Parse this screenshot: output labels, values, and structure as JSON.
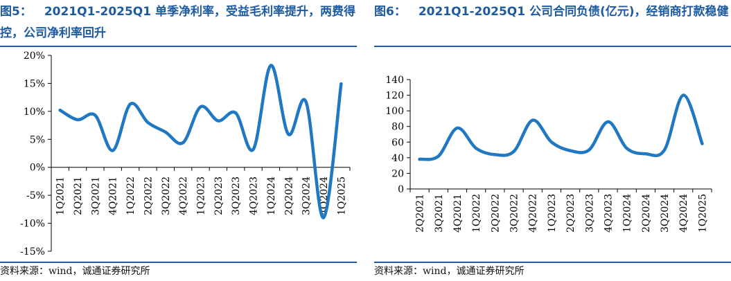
{
  "left": {
    "fig_num": "图5：",
    "fig_title": "2021Q1-2025Q1 单季净利率，受益毛利率提升，两费得控，公司净利率回升",
    "source": "资料来源：wind，诚通证券研究所"
  },
  "right": {
    "fig_num": "图6：",
    "fig_title": "2021Q1-2025Q1 公司合同负债(亿元)，经销商打款稳健",
    "source": "资料来源：wind，诚通证券研究所"
  },
  "colors": {
    "title": "#1e5aa0",
    "series": "#1f78c1",
    "axis": "#000000"
  },
  "chart_data": [
    {
      "type": "line",
      "title": "",
      "xlabel": "",
      "ylabel": "",
      "categories": [
        "1Q2021",
        "2Q2021",
        "3Q2021",
        "4Q2021",
        "1Q2022",
        "2Q2022",
        "3Q2022",
        "4Q2022",
        "1Q2023",
        "2Q2023",
        "3Q2023",
        "4Q2023",
        "1Q2024",
        "2Q2024",
        "3Q2024",
        "4Q2024",
        "1Q2025"
      ],
      "series": [
        {
          "values": [
            10.2,
            8.5,
            9.3,
            3.0,
            11.3,
            8.0,
            6.3,
            4.4,
            10.8,
            8.3,
            9.7,
            3.2,
            18.2,
            5.9,
            11.7,
            -9.0,
            14.9
          ]
        }
      ],
      "ylim": [
        -15,
        20
      ],
      "yticks": [
        -15,
        -10,
        -5,
        0,
        5,
        10,
        15,
        20
      ],
      "ytick_labels": [
        "-15%",
        "-10%",
        "-5%",
        "0%",
        "5%",
        "10%",
        "15%",
        "20%"
      ],
      "grid": false,
      "legend": "none"
    },
    {
      "type": "line",
      "title": "",
      "xlabel": "",
      "ylabel": "",
      "categories": [
        "2Q2021",
        "3Q2021",
        "4Q2021",
        "1Q2022",
        "2Q2022",
        "3Q2022",
        "4Q2022",
        "1Q2023",
        "2Q2023",
        "3Q2023",
        "4Q2023",
        "1Q2024",
        "2Q2024",
        "3Q2024",
        "4Q2024",
        "1Q2025"
      ],
      "series": [
        {
          "values": [
            38,
            42,
            78,
            52,
            44,
            48,
            88,
            60,
            49,
            50,
            86,
            52,
            45,
            50,
            120,
            58
          ]
        }
      ],
      "ylim": [
        0,
        140
      ],
      "yticks": [
        0,
        20,
        40,
        60,
        80,
        100,
        120,
        140
      ],
      "ytick_labels": [
        "0",
        "20",
        "40",
        "60",
        "80",
        "100",
        "120",
        "140"
      ],
      "grid": false,
      "legend": "none"
    }
  ]
}
